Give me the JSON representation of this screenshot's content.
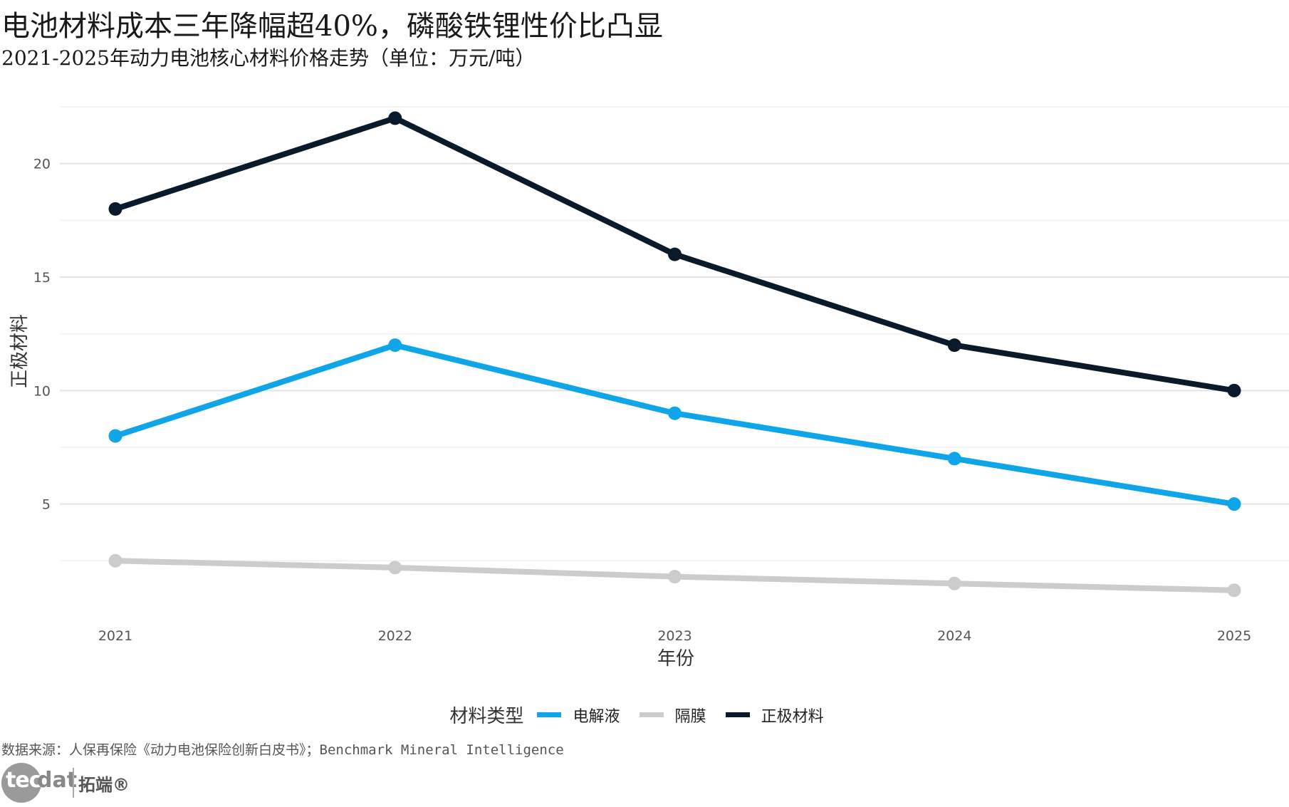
{
  "header": {
    "title": "电池材料成本三年降幅超40%，磷酸铁锂性价比凸显",
    "subtitle": "2021-2025年动力电池核心材料价格走势（单位：万元/吨）"
  },
  "chart_data": {
    "type": "line",
    "x": [
      "2021",
      "2022",
      "2023",
      "2024",
      "2025"
    ],
    "xlabel": "年份",
    "ylabel": "正极材料",
    "ylim": [
      0,
      22.5
    ],
    "yticks": [
      5,
      10,
      15,
      20
    ],
    "grid": true,
    "legend_position": "bottom",
    "legend_title": "材料类型",
    "series": [
      {
        "name": "电解液",
        "color": "#0ea5e9",
        "values": [
          8,
          12,
          9,
          7,
          5
        ]
      },
      {
        "name": "隔膜",
        "color": "#cccccc",
        "values": [
          2.5,
          2.2,
          1.8,
          1.5,
          1.2
        ]
      },
      {
        "name": "正极材料",
        "color": "#0b1a2a",
        "values": [
          18,
          22,
          16,
          12,
          10
        ]
      }
    ]
  },
  "footer": {
    "source": "数据来源：人保再保险《动力电池保险创新白皮书》；Benchmark Mineral Intelligence",
    "logo_tec": "tec",
    "logo_dat": "dat",
    "logo_cn": "拓端®"
  }
}
